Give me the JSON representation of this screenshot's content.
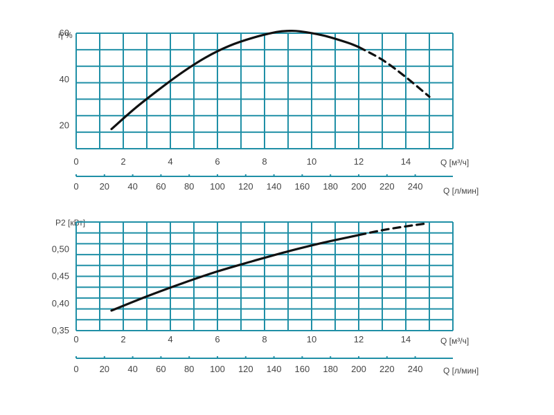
{
  "colors": {
    "grid": "#1f8fa6",
    "curve": "#111111",
    "text": "#444444",
    "background": "#ffffff"
  },
  "chart_data": [
    {
      "type": "line",
      "ylabel": "η %",
      "xlabel": "Q [м³/ч]",
      "xlabel_secondary": "Q [л/мин]",
      "xlim": [
        0,
        16
      ],
      "ylim": [
        10,
        60
      ],
      "xticks": [
        "0",
        "2",
        "4",
        "6",
        "8",
        "10",
        "12",
        "14"
      ],
      "xticks_secondary": [
        "0",
        "20",
        "40",
        "60",
        "80",
        "100",
        "120",
        "140",
        "160",
        "180",
        "200",
        "220",
        "240"
      ],
      "yticks": [
        "20",
        "40",
        "60"
      ],
      "grid": true,
      "series": [
        {
          "style": "solid",
          "x": [
            1.5,
            2.5,
            3.5,
            4.5,
            5.5,
            6.5,
            7.5,
            8.5,
            9.0,
            9.5,
            10.5,
            11.5,
            12.0
          ],
          "y": [
            18.5,
            27.5,
            35.5,
            43.0,
            49.5,
            54.5,
            58.0,
            60.5,
            61.0,
            60.8,
            59.0,
            56.0,
            54.0
          ]
        },
        {
          "style": "dashed",
          "x": [
            12.0,
            13.0,
            14.0,
            15.0
          ],
          "y": [
            54.0,
            48.5,
            41.0,
            32.5
          ]
        }
      ]
    },
    {
      "type": "line",
      "ylabel": "P2 [кВт]",
      "xlabel": "Q [м³/ч]",
      "xlabel_secondary": "Q [л/мин]",
      "xlim": [
        0,
        16
      ],
      "ylim": [
        0.35,
        0.55
      ],
      "xticks": [
        "0",
        "2",
        "4",
        "6",
        "8",
        "10",
        "12",
        "14"
      ],
      "xticks_secondary": [
        "0",
        "20",
        "40",
        "60",
        "80",
        "100",
        "120",
        "140",
        "160",
        "180",
        "200",
        "220",
        "240"
      ],
      "yticks": [
        "0,35",
        "0,40",
        "0,45",
        "0,50"
      ],
      "grid": true,
      "series": [
        {
          "style": "solid",
          "x": [
            1.5,
            3.0,
            4.5,
            6.0,
            7.5,
            9.0,
            10.5,
            12.0
          ],
          "y": [
            0.387,
            0.413,
            0.437,
            0.459,
            0.478,
            0.496,
            0.512,
            0.526
          ]
        },
        {
          "style": "dashed",
          "x": [
            12.0,
            13.0,
            14.0,
            14.8
          ],
          "y": [
            0.526,
            0.535,
            0.542,
            0.547
          ]
        }
      ]
    }
  ]
}
